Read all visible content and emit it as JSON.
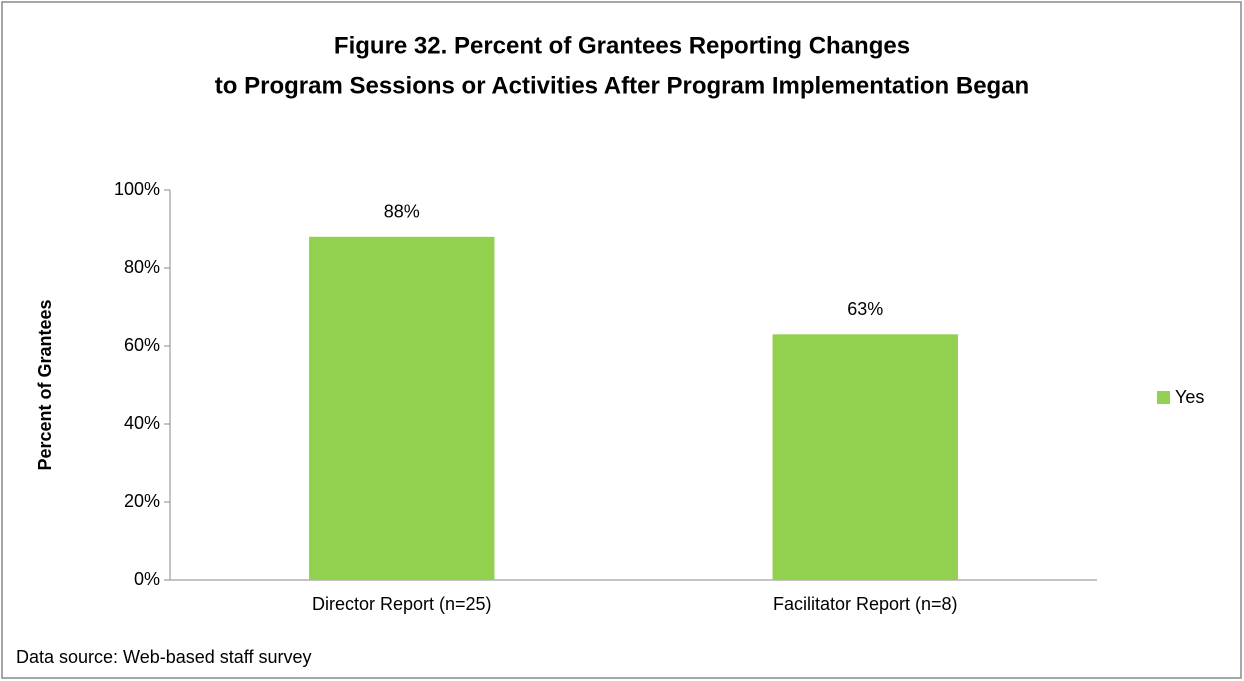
{
  "chart_data": {
    "type": "bar",
    "title": [
      "Figure 32. Percent of Grantees Reporting Changes",
      "to Program Sessions or Activities After Program Implementation Began"
    ],
    "y_label": "Percent of Grantees",
    "categories": [
      "Director Report (n=25)",
      "Facilitator Report (n=8)"
    ],
    "series": [
      {
        "name": "Yes",
        "color": "#92d050",
        "values": [
          88,
          63
        ],
        "value_labels": [
          "88%",
          "63%"
        ]
      }
    ],
    "ylim": [
      0,
      100
    ],
    "yticks": [
      {
        "value": 0,
        "label": "0%"
      },
      {
        "value": 20,
        "label": "20%"
      },
      {
        "value": 40,
        "label": "40%"
      },
      {
        "value": 60,
        "label": "60%"
      },
      {
        "value": 80,
        "label": "80%"
      },
      {
        "value": 100,
        "label": "100%"
      }
    ],
    "grid": false,
    "legend": "right",
    "source": "Data source: Web-based staff survey"
  }
}
